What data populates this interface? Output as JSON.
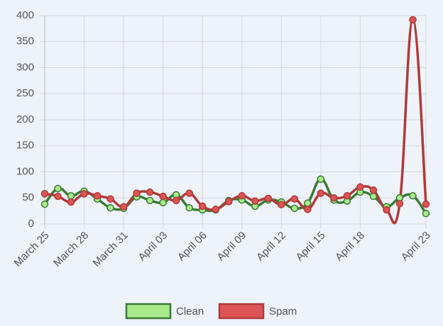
{
  "chart_data": {
    "type": "line",
    "categories": [
      "March 25",
      null,
      null,
      "March 28",
      null,
      null,
      "March 31",
      null,
      null,
      "April 03",
      null,
      null,
      "April 06",
      null,
      null,
      "April 09",
      null,
      null,
      "April 12",
      null,
      null,
      "April 15",
      null,
      null,
      "April 18",
      null,
      null,
      null,
      null,
      "April 23"
    ],
    "series": [
      {
        "name": "Clean",
        "color": "#3b7a34",
        "fill_color": "#a9ea8c",
        "values": [
          38,
          68,
          54,
          63,
          48,
          31,
          30,
          52,
          45,
          41,
          56,
          31,
          27,
          27,
          45,
          46,
          34,
          46,
          42,
          30,
          40,
          86,
          46,
          44,
          61,
          53,
          33,
          50,
          54,
          20
        ]
      },
      {
        "name": "Spam",
        "color": "#b03a3a",
        "fill_color": "#dc5454",
        "values": [
          58,
          53,
          42,
          58,
          54,
          48,
          33,
          59,
          61,
          53,
          45,
          59,
          34,
          28,
          43,
          54,
          44,
          49,
          37,
          48,
          28,
          59,
          50,
          54,
          71,
          65,
          27,
          39,
          392,
          38
        ]
      }
    ],
    "ylim": [
      0,
      400
    ],
    "yticks": [
      0,
      50,
      100,
      150,
      200,
      250,
      300,
      350,
      400
    ],
    "grid": true,
    "legend": "bottom"
  }
}
